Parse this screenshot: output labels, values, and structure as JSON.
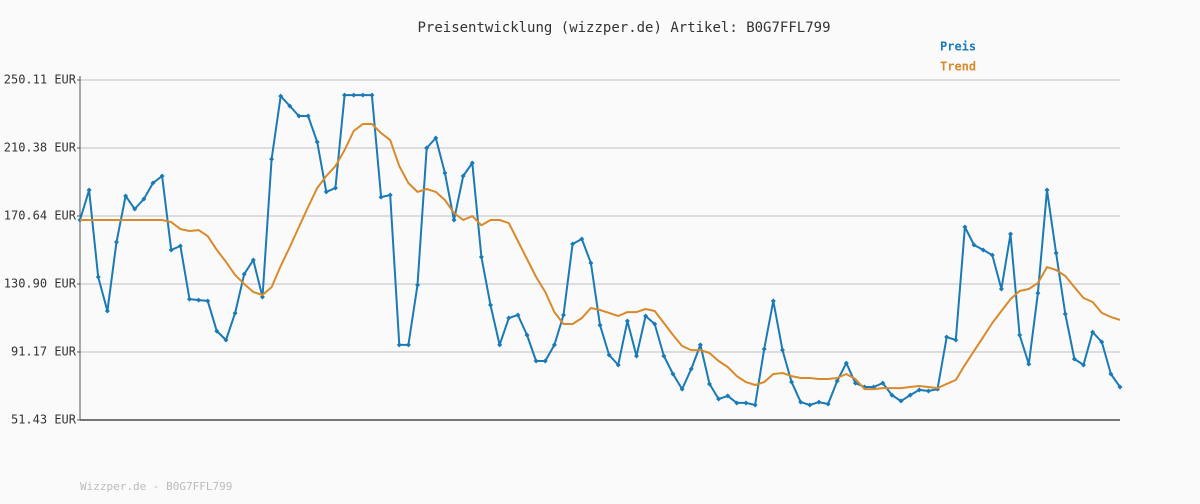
{
  "chart_data": {
    "type": "line",
    "title": "Preisentwicklung (wizzper.de) Artikel: B0G7FFL799",
    "footer": "Wizzper.de - B0G7FFL799",
    "ylim": [
      51.43,
      250.11
    ],
    "yticks": [
      {
        "value": 51.43,
        "label": "51.43 EUR"
      },
      {
        "value": 91.17,
        "label": "91.17 EUR"
      },
      {
        "value": 130.9,
        "label": "130.90 EUR"
      },
      {
        "value": 170.64,
        "label": "170.64 EUR"
      },
      {
        "value": 210.38,
        "label": "210.38 EUR"
      },
      {
        "value": 250.11,
        "label": "250.11 EUR"
      }
    ],
    "grid": true,
    "legend": "top-right",
    "series": [
      {
        "name": "Preis",
        "color": "#1a7ab5",
        "markers": true,
        "values": [
          168.3,
          185.8,
          135.0,
          115.1,
          155.4,
          182.3,
          174.7,
          180.6,
          189.9,
          194.0,
          150.8,
          153.1,
          122.1,
          121.5,
          121.0,
          103.4,
          98.2,
          113.9,
          136.7,
          144.9,
          123.3,
          203.9,
          240.7,
          234.9,
          229.1,
          229.1,
          213.9,
          184.7,
          187.0,
          241.3,
          241.3,
          241.3,
          241.3,
          181.7,
          182.9,
          95.3,
          95.3,
          130.3,
          210.4,
          216.2,
          195.8,
          168.3,
          194.0,
          201.6,
          146.7,
          118.6,
          95.3,
          111.0,
          112.8,
          101.1,
          85.9,
          85.9,
          95.3,
          112.8,
          154.3,
          157.2,
          143.2,
          106.9,
          89.4,
          83.6,
          109.3,
          88.8,
          112.2,
          107.5,
          88.8,
          78.3,
          69.5,
          81.2,
          95.3,
          72.5,
          63.7,
          65.5,
          61.4,
          61.4,
          60.2,
          92.9,
          121.0,
          92.3,
          73.6,
          61.9,
          60.2,
          61.9,
          60.8,
          74.2,
          84.7,
          73.0,
          70.7,
          70.7,
          73.0,
          66.0,
          62.5,
          66.0,
          69.0,
          68.4,
          69.5,
          99.9,
          98.2,
          164.2,
          153.7,
          150.8,
          147.8,
          128.0,
          160.1,
          101.1,
          84.1,
          125.6,
          185.8,
          149.0,
          113.4,
          87.1,
          83.6,
          102.8,
          97.0,
          78.3,
          70.7
        ]
      },
      {
        "name": "Trend",
        "color": "#d98a2a",
        "markers": false,
        "values": [
          168.3,
          168.3,
          168.3,
          168.3,
          168.3,
          168.3,
          168.3,
          168.3,
          168.3,
          168.3,
          167.1,
          163.0,
          161.9,
          162.4,
          158.9,
          150.8,
          143.8,
          136.2,
          130.9,
          126.2,
          124.5,
          129.1,
          141.4,
          152.5,
          164.2,
          175.9,
          187.0,
          194.0,
          199.8,
          209.2,
          220.3,
          224.4,
          224.4,
          219.1,
          215.0,
          199.8,
          189.9,
          184.7,
          186.4,
          184.7,
          180.0,
          172.4,
          168.3,
          170.6,
          165.2,
          168.3,
          168.3,
          166.5,
          156.0,
          145.5,
          135.0,
          126.2,
          114.5,
          107.5,
          107.5,
          111.0,
          116.9,
          115.7,
          114.0,
          112.2,
          114.5,
          114.5,
          116.3,
          115.1,
          108.1,
          101.1,
          94.7,
          92.3,
          92.3,
          90.6,
          85.9,
          82.4,
          77.1,
          73.6,
          71.9,
          73.6,
          78.3,
          78.9,
          77.1,
          76.0,
          76.0,
          75.4,
          75.4,
          76.0,
          78.3,
          75.4,
          69.5,
          69.5,
          70.1,
          70.1,
          70.1,
          70.7,
          71.3,
          70.7,
          70.1,
          72.5,
          74.8,
          83.6,
          91.7,
          99.9,
          108.1,
          115.1,
          122.1,
          126.8,
          128.0,
          131.5,
          140.8,
          139.1,
          135.6,
          129.1,
          122.7,
          120.4,
          114.0,
          111.6,
          109.9
        ]
      }
    ]
  }
}
